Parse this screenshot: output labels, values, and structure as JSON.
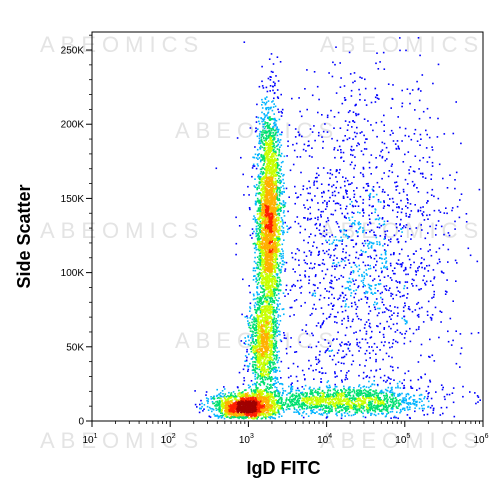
{
  "chart_data": {
    "type": "heatmap",
    "subtype": "flow-cytometry-density-dot-plot",
    "xlabel": "IgD FITC",
    "ylabel": "Side Scatter",
    "x_scale": "log",
    "xlim": [
      10,
      1000000
    ],
    "x_ticks": [
      {
        "value": 10,
        "base": "10",
        "exp": "1"
      },
      {
        "value": 100,
        "base": "10",
        "exp": "2"
      },
      {
        "value": 1000,
        "base": "10",
        "exp": "3"
      },
      {
        "value": 10000,
        "base": "10",
        "exp": "4"
      },
      {
        "value": 100000,
        "base": "10",
        "exp": "5"
      },
      {
        "value": 1000000,
        "base": "10",
        "exp": "6"
      }
    ],
    "y_scale": "linear",
    "ylim": [
      0,
      262144
    ],
    "y_ticks": [
      {
        "value": 0,
        "label": "0"
      },
      {
        "value": 50000,
        "label": "50K"
      },
      {
        "value": 100000,
        "label": "100K"
      },
      {
        "value": 150000,
        "label": "150K"
      },
      {
        "value": 200000,
        "label": "200K"
      },
      {
        "value": 250000,
        "label": "250K"
      }
    ],
    "grid": false,
    "legend": "none",
    "colormap": [
      "#0000ff",
      "#00b4ff",
      "#00e070",
      "#c8ff00",
      "#ffb000",
      "#ff2000",
      "#a00000"
    ],
    "watermark_text": "ABEOMICS",
    "populations": [
      {
        "id": "bright-vertical-population",
        "x_center": 1800,
        "y_center": 135000,
        "x_log_spread": 0.08,
        "y_spread": 38000,
        "weight": 0.34
      },
      {
        "id": "lower-vertical-population",
        "x_center": 1500,
        "y_center": 50000,
        "x_log_spread": 0.09,
        "y_spread": 18000,
        "weight": 0.12
      },
      {
        "id": "low-left-cluster",
        "x_center": 900,
        "y_center": 10000,
        "x_log_spread": 0.2,
        "y_spread": 5000,
        "weight": 0.18
      },
      {
        "id": "horizontal-streak",
        "x_center": 15000,
        "y_center": 14000,
        "x_log_spread": 0.55,
        "y_spread": 5000,
        "weight": 0.16
      },
      {
        "id": "diffuse-upper-right",
        "x_center": 30000,
        "y_center": 110000,
        "x_log_spread": 0.6,
        "y_spread": 60000,
        "weight": 0.2
      }
    ]
  }
}
